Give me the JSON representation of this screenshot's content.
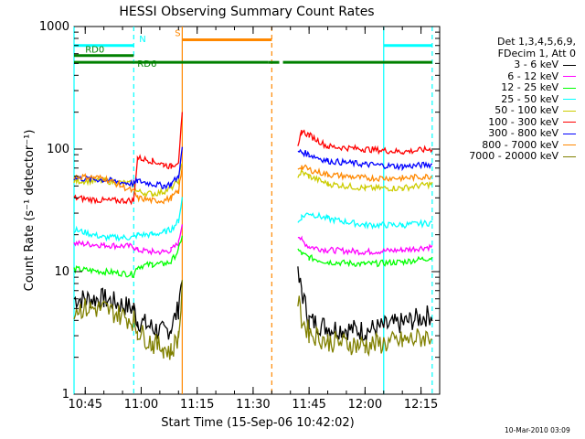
{
  "chart_data": {
    "type": "line",
    "title": "HESSI Observing Summary Count Rates",
    "xlabel": "Start Time (15-Sep-06 10:42:02)",
    "ylabel": "Count Rate (s⁻¹ detector⁻¹)",
    "y_scale": "log",
    "ylim": [
      1,
      1000
    ],
    "xlim": [
      "10:42",
      "12:20"
    ],
    "x_ticks": [
      "10:45",
      "11:00",
      "11:15",
      "11:30",
      "11:45",
      "12:00",
      "12:15"
    ],
    "y_ticks": [
      "1",
      "10",
      "100",
      "1000"
    ],
    "grid": false,
    "legend_position": "right-outside",
    "legend_header": [
      "Det 1,3,4,5,6,9,",
      "FDecim 1, Att 0"
    ],
    "series": [
      {
        "name": "3 - 6 keV",
        "color": "#000000",
        "x": [
          "10:42",
          "10:50",
          "10:58",
          "10:59",
          "11:03",
          "11:06",
          "11:08",
          "11:10",
          "11:11",
          "11:42",
          "11:43",
          "11:45",
          "11:50",
          "12:00",
          "12:10",
          "12:18"
        ],
        "y": [
          6.0,
          6.0,
          5.0,
          4.0,
          3.5,
          3.2,
          3.5,
          5.0,
          10.0,
          9.0,
          7.0,
          4.0,
          3.5,
          3.3,
          3.8,
          4.5
        ]
      },
      {
        "name": "6 - 12 keV",
        "color": "#ff00ff",
        "x": [
          "10:42",
          "10:50",
          "10:58",
          "10:59",
          "11:03",
          "11:06",
          "11:08",
          "11:10",
          "11:11",
          "11:42",
          "11:43",
          "11:45",
          "11:50",
          "12:00",
          "12:10",
          "12:18"
        ],
        "y": [
          17,
          16.5,
          16,
          15,
          14.5,
          14.5,
          15,
          17,
          25,
          20,
          18,
          16,
          15,
          14.5,
          15,
          16
        ]
      },
      {
        "name": "12 - 25 keV",
        "color": "#00ff00",
        "x": [
          "10:42",
          "10:50",
          "10:58",
          "10:59",
          "11:03",
          "11:06",
          "11:08",
          "11:10",
          "11:11",
          "11:42",
          "11:43",
          "11:45",
          "11:50",
          "12:00",
          "12:10",
          "12:18"
        ],
        "y": [
          10.5,
          10,
          9.5,
          11,
          11.5,
          11.5,
          12,
          15,
          20,
          15,
          14,
          13,
          12,
          11.5,
          12,
          13
        ]
      },
      {
        "name": "25 - 50 keV",
        "color": "#00ffff",
        "x": [
          "10:42",
          "10:50",
          "10:58",
          "10:59",
          "11:03",
          "11:06",
          "11:08",
          "11:10",
          "11:11",
          "11:42",
          "11:43",
          "11:45",
          "11:50",
          "12:00",
          "12:10",
          "12:18"
        ],
        "y": [
          22,
          19,
          19,
          20,
          20,
          21,
          22,
          26,
          40,
          25,
          28,
          30,
          27,
          24,
          24,
          25
        ]
      },
      {
        "name": "50 - 100 keV",
        "color": "#cccc00",
        "x": [
          "10:42",
          "10:50",
          "10:58",
          "10:59",
          "11:03",
          "11:06",
          "11:08",
          "11:10",
          "11:11",
          "11:42",
          "11:43",
          "11:45",
          "11:50",
          "12:00",
          "12:10",
          "12:18"
        ],
        "y": [
          55,
          55,
          52,
          45,
          43,
          45,
          48,
          55,
          80,
          60,
          65,
          60,
          52,
          48,
          48,
          52
        ]
      },
      {
        "name": "100 - 300 keV",
        "color": "#ff0000",
        "x": [
          "10:42",
          "10:50",
          "10:58",
          "10:59",
          "11:03",
          "11:06",
          "11:08",
          "11:10",
          "11:11",
          "11:42",
          "11:43",
          "11:45",
          "11:50",
          "12:00",
          "12:10",
          "12:18"
        ],
        "y": [
          40,
          38,
          38,
          85,
          80,
          75,
          72,
          80,
          190,
          100,
          140,
          130,
          105,
          100,
          95,
          100
        ]
      },
      {
        "name": "300 - 800 keV",
        "color": "#0000ff",
        "x": [
          "10:42",
          "10:50",
          "10:58",
          "10:59",
          "11:03",
          "11:06",
          "11:08",
          "11:10",
          "11:11",
          "11:42",
          "11:43",
          "11:45",
          "11:50",
          "12:00",
          "12:10",
          "12:18"
        ],
        "y": [
          58,
          56,
          52,
          55,
          52,
          50,
          52,
          60,
          100,
          95,
          95,
          90,
          80,
          75,
          72,
          75
        ]
      },
      {
        "name": "800 - 7000 keV",
        "color": "#ff8800",
        "x": [
          "10:42",
          "10:50",
          "10:58",
          "10:59",
          "11:03",
          "11:06",
          "11:08",
          "11:10",
          "11:11",
          "11:42",
          "11:43",
          "11:45",
          "11:50",
          "12:00",
          "12:10",
          "12:18"
        ],
        "y": [
          60,
          58,
          45,
          40,
          38,
          38,
          40,
          45,
          70,
          70,
          72,
          68,
          62,
          58,
          58,
          60
        ]
      },
      {
        "name": "7000 - 20000 keV",
        "color": "#808000",
        "x": [
          "10:42",
          "10:50",
          "10:58",
          "10:59",
          "11:03",
          "11:06",
          "11:08",
          "11:10",
          "11:11",
          "11:42",
          "11:43",
          "11:45",
          "11:50",
          "12:00",
          "12:10",
          "12:18"
        ],
        "y": [
          5.0,
          5.0,
          4.0,
          3.3,
          2.6,
          2.4,
          2.2,
          3.0,
          7.0,
          6.0,
          4.0,
          3.2,
          2.7,
          2.5,
          2.7,
          3.0
        ]
      }
    ],
    "flags": [
      {
        "label": "N",
        "color": "#00ffff",
        "y": 700,
        "segments": [
          [
            "10:42",
            "10:58"
          ],
          [
            "12:05",
            "12:18"
          ]
        ]
      },
      {
        "label": "S",
        "color": "#ff8800",
        "y": 780,
        "segments": [
          [
            "11:11",
            "11:35"
          ]
        ]
      },
      {
        "label": "RD0",
        "color": "#008000",
        "y": 580,
        "segments": [
          [
            "10:42",
            "10:58"
          ]
        ]
      },
      {
        "label": "RD6",
        "color": "#008000",
        "y": 510,
        "segments": [
          [
            "10:42",
            "10:58"
          ],
          [
            "10:58",
            "11:34"
          ],
          [
            "11:34",
            "11:37"
          ],
          [
            "11:38",
            "12:18"
          ]
        ]
      }
    ],
    "vertical_markers": [
      {
        "x": "10:42",
        "color": "#00ffff",
        "style": "solid"
      },
      {
        "x": "10:58",
        "color": "#00ffff",
        "style": "dashed"
      },
      {
        "x": "11:11",
        "color": "#ff8800",
        "style": "solid"
      },
      {
        "x": "11:35",
        "color": "#ff8800",
        "style": "dashed"
      },
      {
        "x": "12:05",
        "color": "#00ffff",
        "style": "solid"
      },
      {
        "x": "12:18",
        "color": "#00ffff",
        "style": "dashed"
      }
    ],
    "timestamp": "10-Mar-2010 03:09"
  }
}
